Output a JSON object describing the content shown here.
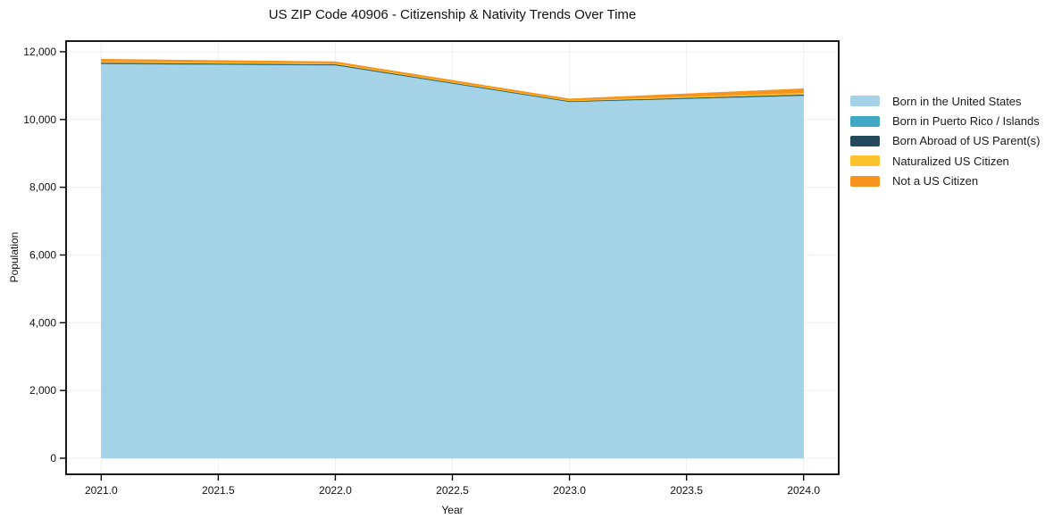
{
  "figure": {
    "title": "US ZIP Code 40906 - Citizenship & Nativity Trends Over Time",
    "xlabel": "Year",
    "ylabel": "Population"
  },
  "axes": {
    "x": {
      "tick_values": [
        2021.0,
        2021.5,
        2022.0,
        2022.5,
        2023.0,
        2023.5,
        2024.0
      ],
      "tick_labels": [
        "2021.0",
        "2021.5",
        "2022.0",
        "2022.5",
        "2023.0",
        "2023.5",
        "2024.0"
      ]
    },
    "y": {
      "tick_values": [
        0,
        2000,
        4000,
        6000,
        8000,
        10000,
        12000
      ],
      "tick_labels": [
        "0",
        "2,000",
        "4,000",
        "6,000",
        "8,000",
        "10,000",
        "12,000"
      ]
    }
  },
  "colors": {
    "grid": "#f0f0f0",
    "axis": "#000000",
    "background": "#ffffff"
  },
  "chart_data": {
    "type": "area",
    "stacked": true,
    "title": "US ZIP Code 40906 - Citizenship & Nativity Trends Over Time",
    "xlabel": "Year",
    "ylabel": "Population",
    "x": [
      2021,
      2022,
      2023,
      2024
    ],
    "series": [
      {
        "name": "Born in the United States",
        "color": "#a4d3e8",
        "values": [
          11640,
          11600,
          10520,
          10700
        ]
      },
      {
        "name": "Born in Puerto Rico / Islands",
        "color": "#41a7c4",
        "values": [
          15,
          12,
          10,
          15
        ]
      },
      {
        "name": "Born Abroad of US Parent(s)",
        "color": "#25495c",
        "values": [
          25,
          20,
          15,
          25
        ]
      },
      {
        "name": "Naturalized US Citizen",
        "color": "#fcc22d",
        "values": [
          40,
          30,
          25,
          50
        ]
      },
      {
        "name": "Not a US Citizen",
        "color": "#f7941e",
        "values": [
          60,
          45,
          40,
          120
        ]
      }
    ],
    "xlim": [
      2020.85,
      2024.15
    ],
    "ylim": [
      -475,
      12315
    ],
    "grid": true,
    "legend_position": "right-outside-top"
  }
}
